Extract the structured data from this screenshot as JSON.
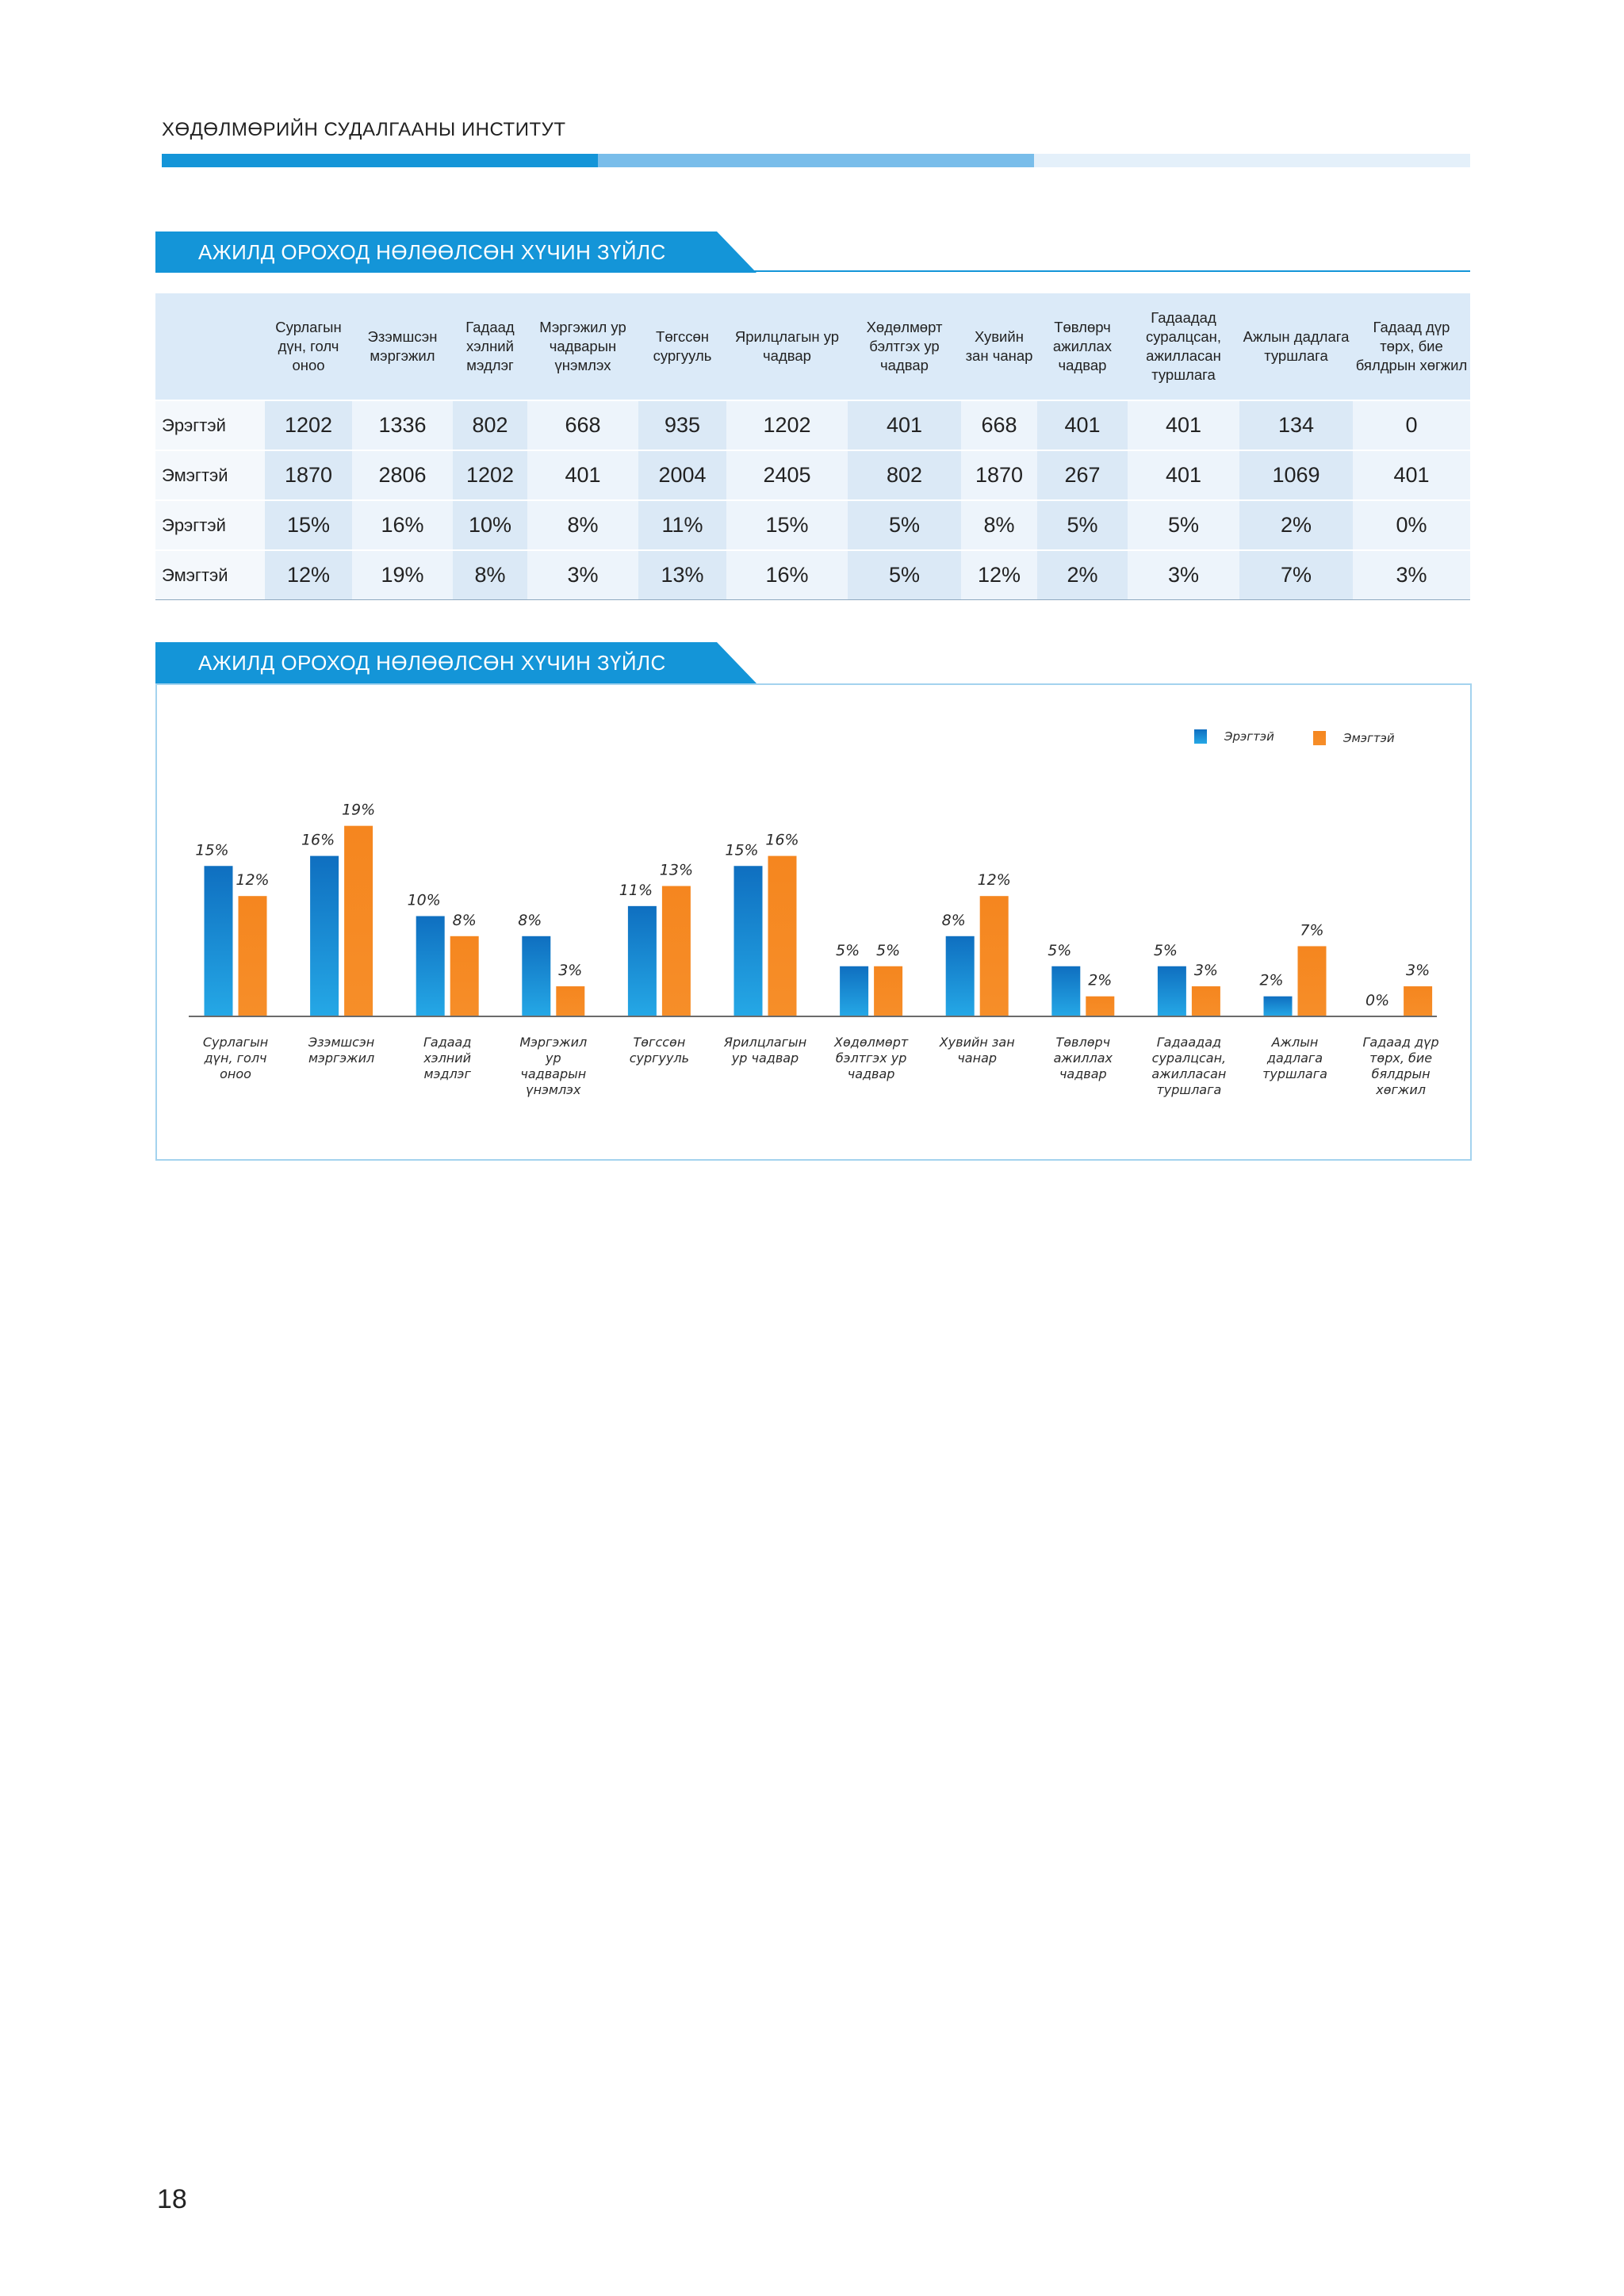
{
  "header": {
    "institute": "ХӨДӨЛМӨРИЙН СУДАЛГААНЫ ИНСТИТУТ",
    "colors": [
      "#1495d8",
      "#79bdea",
      "#e4f0fa"
    ]
  },
  "section_table": {
    "title": "АЖИЛД ОРОХОД НӨЛӨӨЛСӨН ХҮЧИН ЗҮЙЛС"
  },
  "table": {
    "columns": [
      "Сурлагын дүн, голч оноо",
      "Эзэмшсэн мэргэжил",
      "Гадаад хэлний мэдлэг",
      "Мэргэжил ур чадварын үнэмлэх",
      "Төгссөн сургууль",
      "Ярилцлагын ур чадвар",
      "Хөдөлмөрт бэлтгэх ур чадвар",
      "Хувийн зан чанар",
      "Төвлөрч ажиллах чадвар",
      "Гадаадад суралцсан, ажилласан туршлага",
      "Ажлын дадлага туршлага",
      "Гадаад дүр төрх, бие бялдрын хөгжил"
    ],
    "rows": [
      {
        "label": "Эрэгтэй",
        "cells": [
          "1202",
          "1336",
          "802",
          "668",
          "935",
          "1202",
          "401",
          "668",
          "401",
          "401",
          "134",
          "0"
        ]
      },
      {
        "label": "Эмэгтэй",
        "cells": [
          "1870",
          "2806",
          "1202",
          "401",
          "2004",
          "2405",
          "802",
          "1870",
          "267",
          "401",
          "1069",
          "401"
        ]
      },
      {
        "label": "Эрэгтэй",
        "cells": [
          "15%",
          "16%",
          "10%",
          "8%",
          "11%",
          "15%",
          "5%",
          "8%",
          "5%",
          "5%",
          "2%",
          "0%"
        ]
      },
      {
        "label": "Эмэгтэй",
        "cells": [
          "12%",
          "19%",
          "8%",
          "3%",
          "13%",
          "16%",
          "5%",
          "12%",
          "2%",
          "3%",
          "7%",
          "3%"
        ]
      }
    ]
  },
  "section_chart": {
    "title": "АЖИЛД ОРОХОД НӨЛӨӨЛСӨН ХҮЧИН ЗҮЙЛС"
  },
  "chart_data": {
    "type": "bar",
    "title": "АЖИЛД ОРОХОД НӨЛӨӨЛСӨН ХҮЧИН ЗҮЙЛС",
    "categories": [
      "Сурлагын дүн, голч оноо",
      "Эзэмшсэн мэргэжил",
      "Гадаад хэлний мэдлэг",
      "Мэргэжил ур чадварын үнэмлэх",
      "Төгссөн сургууль",
      "Ярилцлагын ур чадвар",
      "Хөдөлмөрт бэлтгэх ур чадвар",
      "Хувийн зан чанар",
      "Төвлөрч ажиллах чадвар",
      "Гадаадад суралцсан, ажилласан туршлага",
      "Ажлын дадлага туршлага",
      "Гадаад дүр төрх, бие бялдрын хөгжил"
    ],
    "category_lines": [
      [
        "Сурлагын",
        "дүн, голч",
        "оноо"
      ],
      [
        "Эзэмшсэн",
        "мэргэжил"
      ],
      [
        "Гадаад",
        "хэлний",
        "мэдлэг"
      ],
      [
        "Мэргэжил",
        "ур",
        "чадварын",
        "үнэмлэх"
      ],
      [
        "Төгссөн",
        "сургууль"
      ],
      [
        "Ярилцлагын",
        "ур чадвар"
      ],
      [
        "Хөдөлмөрт",
        "бэлтгэх ур",
        "чадвар"
      ],
      [
        "Хувийн зан",
        "чанар"
      ],
      [
        "Төвлөрч",
        "ажиллах",
        "чадвар"
      ],
      [
        "Гадаадад",
        "суралцсан,",
        "ажилласан",
        "туршлага"
      ],
      [
        "Ажлын",
        "дадлага",
        "туршлага"
      ],
      [
        "Гадаад дүр",
        "төрх, бие",
        "бялдрын",
        "хөгжил"
      ]
    ],
    "series": [
      {
        "name": "Эрэгтэй",
        "color": "#1788d4",
        "values": [
          15,
          16,
          10,
          8,
          11,
          15,
          5,
          8,
          5,
          5,
          2,
          0
        ]
      },
      {
        "name": "Эмэгтэй",
        "color": "#f68b23",
        "values": [
          12,
          19,
          8,
          3,
          13,
          16,
          5,
          12,
          2,
          3,
          7,
          3
        ]
      }
    ],
    "value_suffix": "%",
    "ylim": [
      0,
      20
    ],
    "legend_position": "top-right",
    "grid": false
  },
  "page_number": "18"
}
